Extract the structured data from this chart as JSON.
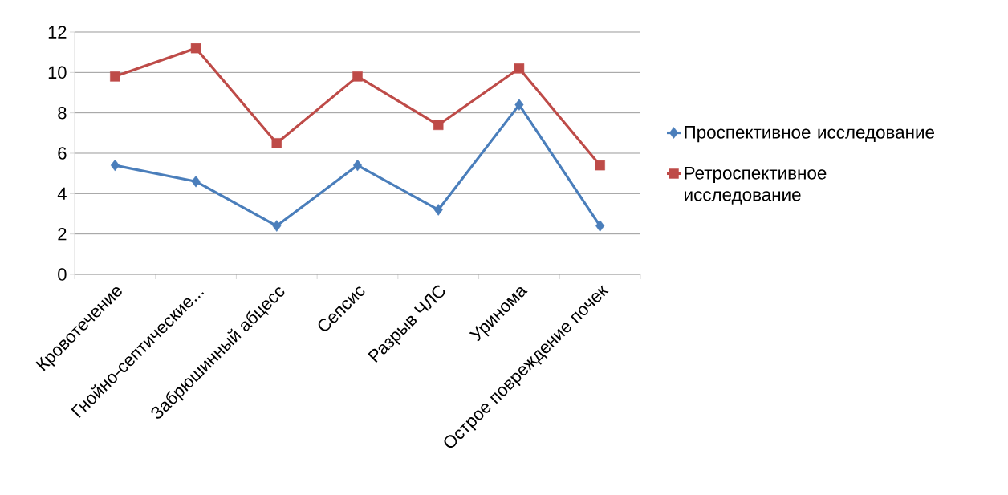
{
  "chart_data": {
    "type": "line",
    "categories": [
      "Кровотечение",
      "Гнойно-септические...",
      "Забрюшинный абцесс",
      "Сепсис",
      "Разрыв ЧЛС",
      "Уринома",
      "Острое повреждение почек"
    ],
    "series": [
      {
        "name": "Проспективное исследование",
        "color": "#4a7ebb",
        "marker": "diamond",
        "values": [
          5.4,
          4.6,
          2.4,
          5.4,
          3.2,
          8.4,
          2.4
        ]
      },
      {
        "name": "Ретроспективное исследование",
        "color": "#be4b48",
        "marker": "square",
        "values": [
          9.8,
          11.2,
          6.5,
          9.8,
          7.4,
          10.2,
          5.4
        ]
      }
    ],
    "ylim": [
      0,
      12
    ],
    "yticks": [
      0,
      2,
      4,
      6,
      8,
      10,
      12
    ],
    "grid": "y",
    "legend": "right"
  }
}
